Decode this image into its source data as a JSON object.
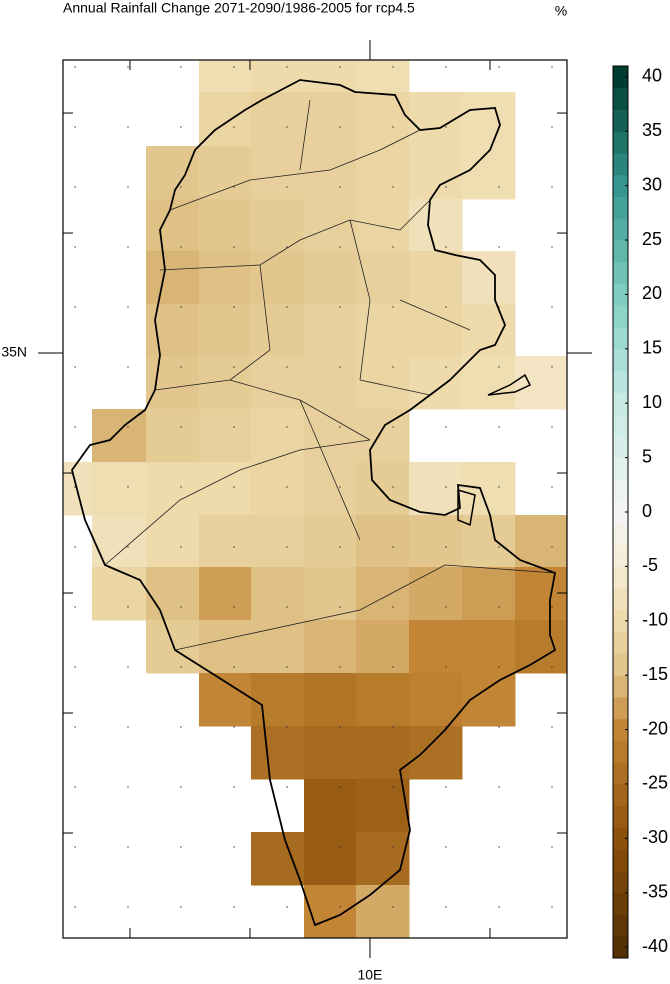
{
  "chart_data": {
    "type": "gridmap",
    "title": "Annual Rainfall Change 2071-2090/1986-2005 for rcp4.5",
    "units": "%",
    "xlim": [
      7.442,
      11.642
    ],
    "ylim": [
      30.125,
      37.442
    ],
    "xticks": [
      {
        "value": 10,
        "label": "10E"
      }
    ],
    "yticks": [
      {
        "value": 35,
        "label": "35N"
      }
    ],
    "minor_xticks": [
      8,
      9,
      11
    ],
    "minor_yticks": [
      37,
      36,
      34,
      33,
      32,
      31
    ],
    "grid": [
      [
        null,
        null,
        null,
        -9,
        -10,
        -10,
        -9,
        null,
        null,
        null
      ],
      [
        null,
        null,
        null,
        -11,
        -12,
        -12,
        -11,
        -10,
        -9,
        null
      ],
      [
        null,
        null,
        -14,
        -13,
        -12,
        -12,
        -11,
        -10,
        -9,
        null
      ],
      [
        null,
        null,
        -15,
        -14,
        -13,
        -12,
        -11,
        -8,
        null,
        null
      ],
      [
        null,
        null,
        -16,
        -15,
        -14,
        -13,
        -12,
        -11,
        -8,
        null
      ],
      [
        null,
        null,
        -15,
        -14,
        -13,
        -12,
        -11,
        -11,
        -10,
        null
      ],
      [
        null,
        null,
        -14,
        -13,
        -12,
        -12,
        -11,
        -10,
        -9,
        -7
      ],
      [
        null,
        -16,
        -13,
        -12,
        -11,
        -12,
        -12,
        null,
        null,
        null
      ],
      [
        -8,
        -9,
        -10,
        -10,
        -11,
        -12,
        -13,
        -8,
        -9,
        null
      ],
      [
        null,
        -8,
        -10,
        -12,
        -12,
        -13,
        -15,
        -14,
        -13,
        -16
      ],
      [
        null,
        -11,
        -15,
        -18,
        -15,
        -14,
        -16,
        -17,
        -18,
        -20
      ],
      [
        null,
        null,
        -13,
        -15,
        -15,
        -16,
        -17,
        -20,
        -20,
        -22
      ],
      [
        null,
        null,
        null,
        -20,
        -22,
        -23,
        -22,
        -21,
        -20,
        null
      ],
      [
        null,
        null,
        null,
        null,
        -24,
        -25,
        -25,
        -24,
        null,
        null
      ],
      [
        null,
        null,
        null,
        null,
        null,
        -28,
        -27,
        null,
        null,
        null
      ],
      [
        null,
        null,
        null,
        null,
        -25,
        -28,
        -25,
        null,
        null,
        null
      ],
      [
        null,
        null,
        null,
        null,
        null,
        -20,
        -17,
        null,
        null,
        null
      ]
    ],
    "colorbar_lim": [
      -41,
      41
    ],
    "colorbar_ticks": [
      40,
      35,
      30,
      25,
      20,
      15,
      10,
      5,
      0,
      -5,
      -10,
      -15,
      -20,
      -25,
      -30,
      -35,
      -40
    ],
    "colormap": [
      {
        "value": -40,
        "color": "#543005"
      },
      {
        "value": -30,
        "color": "#8c510a"
      },
      {
        "value": -20,
        "color": "#c28535"
      },
      {
        "value": -15,
        "color": "#dfc185"
      },
      {
        "value": -10,
        "color": "#eedaab"
      },
      {
        "value": -5,
        "color": "#f6ecd4"
      },
      {
        "value": 0,
        "color": "#f5f5f5"
      },
      {
        "value": 10,
        "color": "#c7eae5"
      },
      {
        "value": 20,
        "color": "#80cdc1"
      },
      {
        "value": 30,
        "color": "#35978f"
      },
      {
        "value": 40,
        "color": "#003c30"
      }
    ]
  }
}
